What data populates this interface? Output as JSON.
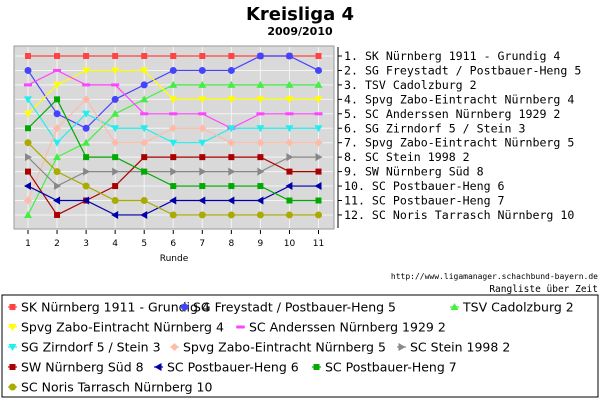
{
  "title": "Kreisliga 4",
  "subtitle": "2009/2010",
  "source_url": "http://www.ligamanager.schachbund-bayern.de",
  "source_caption": "Rangliste über Zeit",
  "chart_data": {
    "type": "line",
    "title": "Kreisliga 4",
    "subtitle": "2009/2010",
    "xlabel": "Runde",
    "ylabel": "",
    "x": [
      1,
      2,
      3,
      4,
      5,
      6,
      7,
      8,
      9,
      10,
      11
    ],
    "ylim": [
      1,
      12
    ],
    "y_inverted": true,
    "grid": true,
    "legend_position": "bottom",
    "ranking_labels": [
      "1.  SK Nürnberg 1911 - Grundig 4",
      "2.  SG Freystadt / Postbauer-Heng 5",
      "3.  TSV Cadolzburg 2",
      "4.  Spvg Zabo-Eintracht Nürnberg 4",
      "5.  SC Anderssen Nürnberg 1929 2",
      "6.  SG Zirndorf 5 / Stein 3",
      "7.  Spvg Zabo-Eintracht Nürnberg 5",
      "8.  SC Stein 1998 2",
      "9.  SW Nürnberg Süd 8",
      "10. SC Postbauer-Heng 6",
      "11. SC Postbauer-Heng 7",
      "12. SC Noris Tarrasch Nürnberg 10"
    ],
    "series": [
      {
        "name": "SK Nürnberg 1911 - Grundig 4",
        "color": "#ff4444",
        "marker": "square",
        "values": [
          1,
          1,
          1,
          1,
          1,
          1,
          1,
          1,
          1,
          1,
          1
        ]
      },
      {
        "name": "SG Freystadt / Postbauer-Heng 5",
        "color": "#4444ff",
        "marker": "circle",
        "values": [
          2,
          5,
          6,
          4,
          3,
          2,
          2,
          2,
          1,
          1,
          2
        ]
      },
      {
        "name": "TSV Cadolzburg 2",
        "color": "#44ee44",
        "marker": "triangle-up",
        "values": [
          12,
          8,
          7,
          5,
          4,
          3,
          3,
          3,
          3,
          3,
          3
        ]
      },
      {
        "name": "Spvg Zabo-Eintracht Nürnberg 4",
        "color": "#ffff00",
        "marker": "triangle-down",
        "values": [
          5,
          3,
          2,
          2,
          2,
          4,
          4,
          4,
          4,
          4,
          4
        ]
      },
      {
        "name": "SC Anderssen Nürnberg 1929 2",
        "color": "#ff44ff",
        "marker": "minus",
        "values": [
          3,
          2,
          3,
          3,
          5,
          5,
          5,
          6,
          5,
          5,
          5
        ]
      },
      {
        "name": "SG Zirndorf 5 / Stein 3",
        "color": "#22eeee",
        "marker": "triangle-down",
        "values": [
          4,
          7,
          5,
          6,
          6,
          7,
          7,
          6,
          6,
          6,
          6
        ]
      },
      {
        "name": "Spvg Zabo-Eintracht Nürnberg 5",
        "color": "#ffbbaa",
        "marker": "diamond",
        "values": [
          11,
          6,
          4,
          7,
          7,
          6,
          6,
          7,
          7,
          7,
          7
        ]
      },
      {
        "name": "SC Stein 1998 2",
        "color": "#888888",
        "marker": "triangle-right",
        "values": [
          8,
          10,
          9,
          9,
          9,
          9,
          9,
          9,
          9,
          8,
          8
        ]
      },
      {
        "name": "SW Nürnberg Süd 8",
        "color": "#aa0000",
        "marker": "square",
        "values": [
          9,
          12,
          11,
          10,
          8,
          8,
          8,
          8,
          8,
          9,
          9
        ]
      },
      {
        "name": "SC Postbauer-Heng 6",
        "color": "#0000aa",
        "marker": "triangle-left",
        "values": [
          10,
          11,
          11,
          12,
          12,
          11,
          11,
          11,
          11,
          10,
          10
        ]
      },
      {
        "name": "SC Postbauer-Heng 7",
        "color": "#00aa00",
        "marker": "square",
        "values": [
          6,
          4,
          8,
          8,
          9,
          10,
          10,
          10,
          10,
          11,
          11
        ]
      },
      {
        "name": "SC Noris Tarrasch Nürnberg 10",
        "color": "#aaaa00",
        "marker": "circle",
        "values": [
          7,
          9,
          10,
          11,
          11,
          12,
          12,
          12,
          12,
          12,
          12
        ]
      }
    ]
  }
}
